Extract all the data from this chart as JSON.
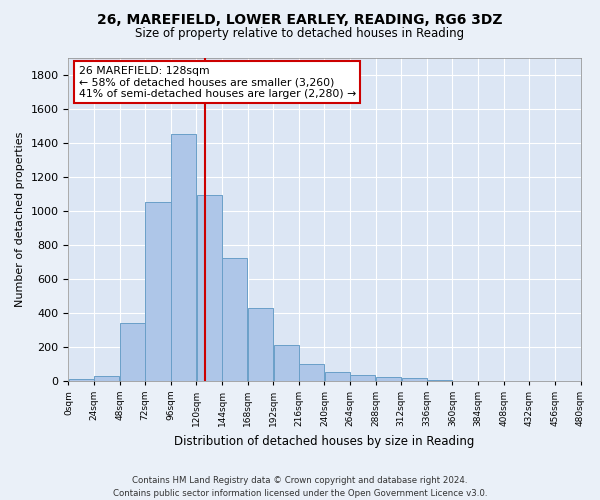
{
  "title1": "26, MAREFIELD, LOWER EARLEY, READING, RG6 3DZ",
  "title2": "Size of property relative to detached houses in Reading",
  "xlabel": "Distribution of detached houses by size in Reading",
  "ylabel": "Number of detached properties",
  "bar_values": [
    10,
    30,
    340,
    1050,
    1450,
    1090,
    720,
    430,
    210,
    100,
    50,
    35,
    20,
    15,
    5,
    0,
    0,
    0,
    0,
    0
  ],
  "bar_edges": [
    0,
    24,
    48,
    72,
    96,
    120,
    144,
    168,
    192,
    216,
    240,
    264,
    288,
    312,
    336,
    360,
    384,
    408,
    432,
    456,
    480
  ],
  "bar_color": "#aec6e8",
  "bar_edgecolor": "#6a9fc8",
  "property_size": 128,
  "vline_color": "#cc0000",
  "annotation_text": "26 MAREFIELD: 128sqm\n← 58% of detached houses are smaller (3,260)\n41% of semi-detached houses are larger (2,280) →",
  "annotation_box_edgecolor": "#cc0000",
  "annotation_box_facecolor": "#ffffff",
  "ylim": [
    0,
    1900
  ],
  "yticks": [
    0,
    200,
    400,
    600,
    800,
    1000,
    1200,
    1400,
    1600,
    1800
  ],
  "footnote": "Contains HM Land Registry data © Crown copyright and database right 2024.\nContains public sector information licensed under the Open Government Licence v3.0.",
  "bg_color": "#eaf0f8",
  "plot_bg_color": "#dce6f4"
}
